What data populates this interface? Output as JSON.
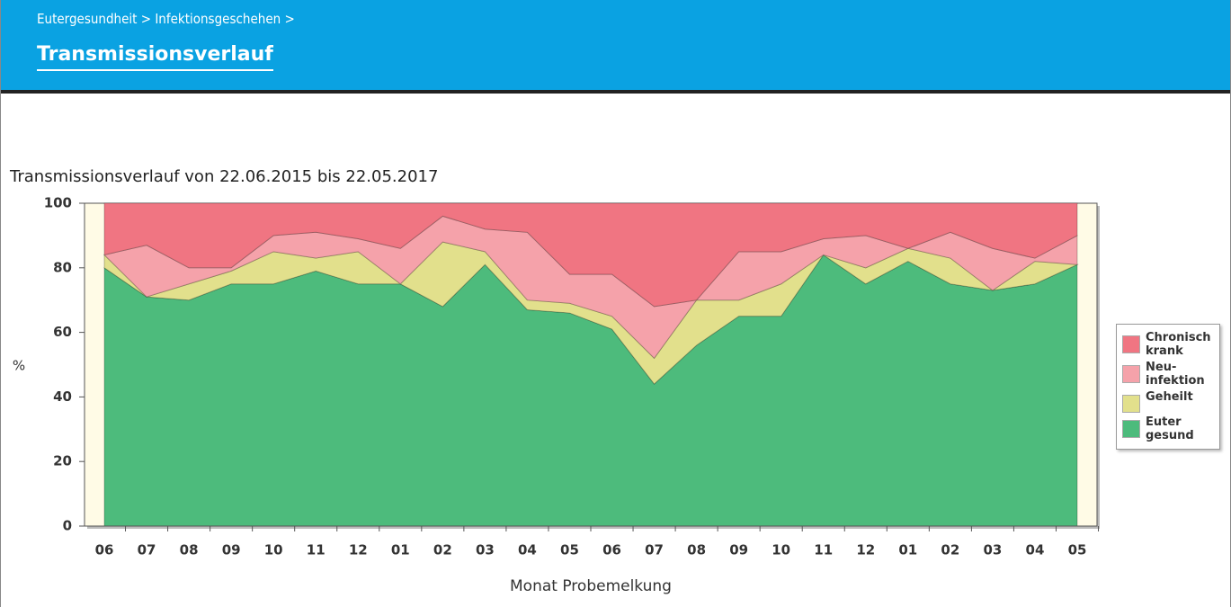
{
  "header": {
    "breadcrumb": "Eutergesundheit > Infektionsgeschehen >",
    "title": "Transmissionsverlauf"
  },
  "chart_data": {
    "type": "stacked_area",
    "title": "Transmissionsverlauf von 22.06.2015 bis 22.05.2017",
    "x_label": "Monat Probemelkung",
    "y_label": "%",
    "categories": [
      "06",
      "07",
      "08",
      "09",
      "10",
      "11",
      "12",
      "01",
      "02",
      "03",
      "04",
      "05",
      "06",
      "07",
      "08",
      "09",
      "10",
      "11",
      "12",
      "01",
      "02",
      "03",
      "04",
      "05"
    ],
    "series": [
      {
        "name": "Euter gesund",
        "color": "#4dbb7c",
        "values": [
          80,
          71,
          70,
          75,
          75,
          79,
          75,
          75,
          68,
          81,
          67,
          66,
          61,
          44,
          56,
          65,
          65,
          84,
          75,
          82,
          75,
          73,
          75,
          81
        ]
      },
      {
        "name": "Geheilt",
        "color": "#e2e08c",
        "values": [
          4,
          0,
          5,
          4,
          10,
          4,
          10,
          0,
          20,
          4,
          3,
          3,
          4,
          8,
          14,
          5,
          10,
          0,
          5,
          4,
          8,
          0,
          7,
          0
        ]
      },
      {
        "name": "Neu-infektion",
        "color": "#f5a2aa",
        "values": [
          0,
          16,
          5,
          1,
          5,
          8,
          4,
          11,
          8,
          7,
          21,
          9,
          13,
          16,
          0,
          15,
          10,
          5,
          10,
          0,
          8,
          13,
          1,
          9
        ]
      },
      {
        "name": "Chronisch krank",
        "color": "#f07582",
        "values": [
          16,
          13,
          20,
          20,
          10,
          9,
          11,
          14,
          4,
          8,
          9,
          22,
          22,
          32,
          30,
          15,
          15,
          11,
          10,
          14,
          9,
          14,
          17,
          10
        ]
      }
    ],
    "ylim": [
      0,
      100
    ],
    "yticks": [
      0,
      20,
      40,
      60,
      80,
      100
    ],
    "legend": "right"
  }
}
